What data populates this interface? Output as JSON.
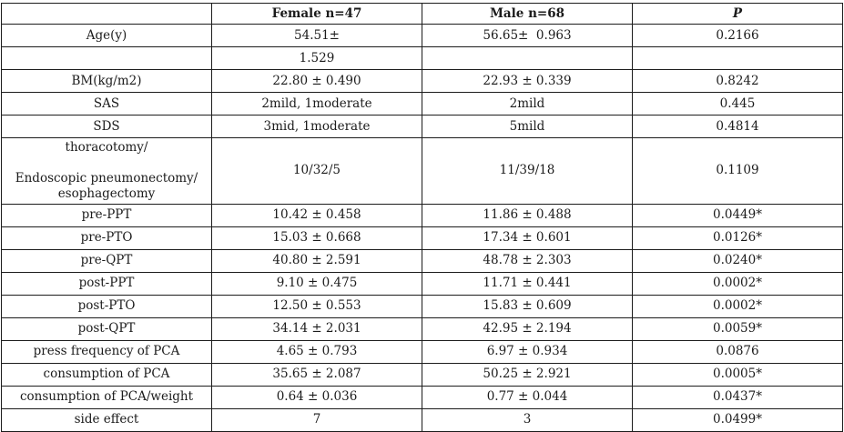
{
  "colors": {
    "background": "#ffffff",
    "border": "#1c1c1c",
    "text": "#1b1b1b"
  },
  "table": {
    "headers": [
      "",
      "Female n=47",
      "Male n=68",
      "P"
    ],
    "rows": [
      {
        "label": "Age(y)",
        "female": "54.51±",
        "male": "56.65±  0.963",
        "p": "0.2166"
      },
      {
        "label": "",
        "female": "1.529",
        "male": "",
        "p": ""
      },
      {
        "label": "BM(kg/m2)",
        "female": "22.80 ± 0.490",
        "male": "22.93 ± 0.339",
        "p": "0.8242"
      },
      {
        "label": "SAS",
        "female": "2mild, 1moderate",
        "male": "2mild",
        "p": "0.445"
      },
      {
        "label": "SDS",
        "female": "3mid, 1moderate",
        "male": "5mild",
        "p": "0.4814"
      },
      {
        "label": "thoracotomy/\n\nEndoscopic pneumonectomy/\nesophagectomy",
        "female": "10/32/5",
        "male": "11/39/18",
        "p": "0.1109"
      },
      {
        "label": "pre-PPT",
        "female": "10.42 ± 0.458",
        "male": "11.86 ± 0.488",
        "p": "0.0449*"
      },
      {
        "label": "pre-PTO",
        "female": "15.03 ± 0.668",
        "male": "17.34 ± 0.601",
        "p": "0.0126*"
      },
      {
        "label": "pre-QPT",
        "female": "40.80 ± 2.591",
        "male": "48.78 ± 2.303",
        "p": "0.0240*"
      },
      {
        "label": "post-PPT",
        "female": "9.10 ± 0.475",
        "male": "11.71 ± 0.441",
        "p": "0.0002*"
      },
      {
        "label": "post-PTO",
        "female": "12.50 ± 0.553",
        "male": "15.83 ± 0.609",
        "p": "0.0002*"
      },
      {
        "label": "post-QPT",
        "female": "34.14 ± 2.031",
        "male": "42.95 ± 2.194",
        "p": "0.0059*"
      },
      {
        "label": "press frequency of PCA",
        "female": "4.65 ± 0.793",
        "male": "6.97 ± 0.934",
        "p": "0.0876"
      },
      {
        "label": "consumption of PCA",
        "female": "35.65 ± 2.087",
        "male": "50.25 ± 2.921",
        "p": "0.0005*"
      },
      {
        "label": "consumption of PCA/weight",
        "female": "0.64 ± 0.036",
        "male": "0.77 ± 0.044",
        "p": "0.0437*"
      },
      {
        "label": "side effect",
        "female": "7",
        "male": "3",
        "p": "0.0499*"
      }
    ]
  }
}
